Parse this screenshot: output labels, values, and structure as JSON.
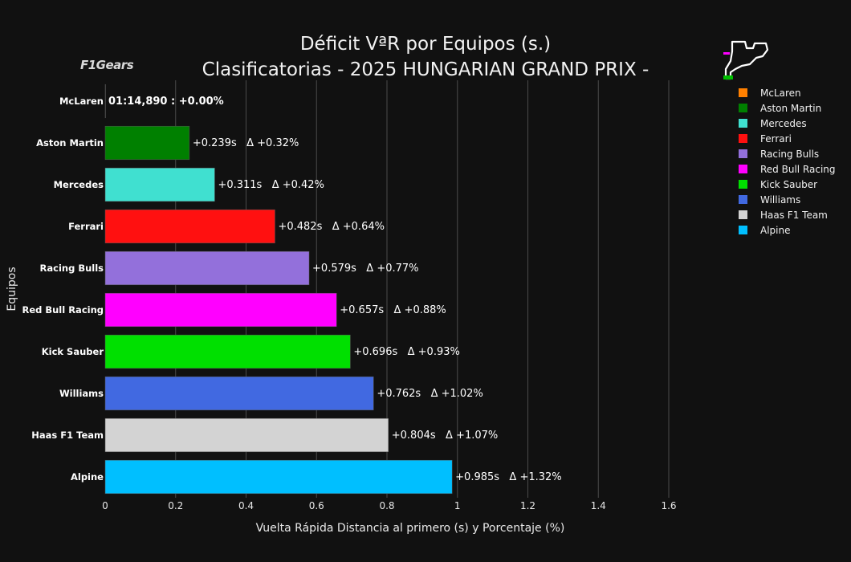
{
  "title": {
    "line1": "Déficit VªR por Equipos (s.)",
    "line2": "Clasificatorias - 2025 HUNGARIAN GRAND PRIX -"
  },
  "logo_text": "F1Gears",
  "chart_data": {
    "type": "bar",
    "orientation": "horizontal",
    "title": "Déficit VªR por Equipos (s.) Clasificatorias - 2025 HUNGARIAN GRAND PRIX -",
    "xlabel": "Vuelta Rápida Distancia al primero (s) y Porcentaje (%)",
    "ylabel": "Equipos",
    "xlim": [
      0,
      1.6
    ],
    "xticks": [
      0,
      0.2,
      0.4,
      0.6,
      0.8,
      1,
      1.2,
      1.4,
      1.6
    ],
    "xtick_labels": [
      "0",
      "0.2",
      "0.4",
      "0.6",
      "0.8",
      "1",
      "1.2",
      "1.4",
      "1.6"
    ],
    "grid": true,
    "legend_position": "right",
    "categories": [
      "McLaren",
      "Aston Martin",
      "Mercedes",
      "Ferrari",
      "Racing Bulls",
      "Red Bull Racing",
      "Kick Sauber",
      "Williams",
      "Haas F1 Team",
      "Alpine"
    ],
    "values": [
      0,
      0.239,
      0.311,
      0.482,
      0.579,
      0.657,
      0.696,
      0.762,
      0.804,
      0.985
    ],
    "colors": [
      "#FF8000",
      "#008000",
      "#40E0D0",
      "#FF1010",
      "#9370DB",
      "#FF00FF",
      "#00E000",
      "#4169E1",
      "#D3D3D3",
      "#00BFFF"
    ],
    "data_labels": [
      "01:14,890 : +0.00%",
      "+0.239s   Δ +0.32%",
      "+0.311s   Δ +0.42%",
      "+0.482s   Δ +0.64%",
      "+0.579s   Δ +0.77%",
      "+0.657s   Δ +0.88%",
      "+0.696s   Δ +0.93%",
      "+0.762s   Δ +1.02%",
      "+0.804s   Δ +1.07%",
      "+0.985s   Δ +1.32%"
    ]
  }
}
